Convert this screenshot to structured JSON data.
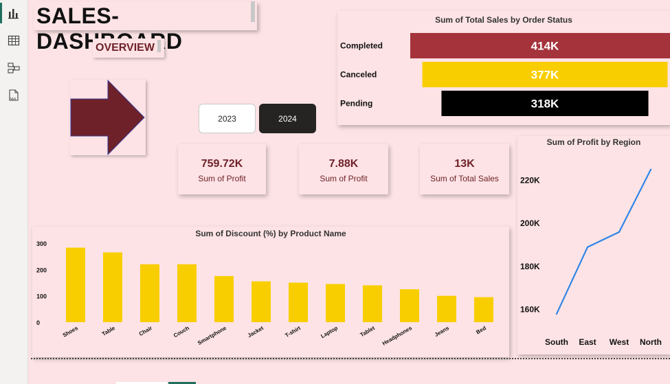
{
  "app": {
    "rail_icons": [
      "report-view-icon",
      "table-view-icon",
      "model-view-icon",
      "dax-query-icon"
    ]
  },
  "dashboard": {
    "title": "SALES-DASHBOARD",
    "subtitle": "OVERVIEW",
    "years": [
      "2023",
      "2024"
    ],
    "selected_year": "2024",
    "kpis": [
      {
        "value": "759.72K",
        "label": "Sum of Profit"
      },
      {
        "value": "7.88K",
        "label": "Sum of Profit"
      },
      {
        "value": "13K",
        "label": "Sum of Total Sales"
      }
    ]
  },
  "colors": {
    "background": "#fde3e5",
    "maroon": "#6e2128",
    "completed": "#a4333c",
    "canceled": "#f9ce00",
    "pending": "#000000",
    "discount_bar": "#f9ce00",
    "profit_line": "#2f86e8"
  },
  "chart_data": [
    {
      "type": "bar",
      "orientation": "horizontal",
      "title": "Sum of Total Sales by Order Status",
      "categories": [
        "Completed",
        "Canceled",
        "Pending"
      ],
      "values": [
        414000,
        377000,
        318000
      ],
      "data_labels": [
        "414K",
        "377K",
        "318K"
      ],
      "xlabel": "",
      "ylabel": ""
    },
    {
      "type": "line",
      "title": "Sum of Profit by Region",
      "x": [
        "South",
        "East",
        "West",
        "North"
      ],
      "values": [
        158000,
        189000,
        196000,
        225000
      ],
      "yticks": [
        "160K",
        "180K",
        "200K",
        "220K"
      ],
      "ylim": [
        150000,
        231000
      ],
      "xlabel": "",
      "ylabel": ""
    },
    {
      "type": "bar",
      "title": "Sum of Discount (%) by Product Name",
      "categories": [
        "Shoes",
        "Table",
        "Chair",
        "Couch",
        "Smartphone",
        "Jacket",
        "T-shirt",
        "Laptop",
        "Tablet",
        "Headphones",
        "Jeans",
        "Bed"
      ],
      "values": [
        283,
        265,
        220,
        220,
        175,
        155,
        150,
        145,
        140,
        125,
        100,
        95
      ],
      "yticks": [
        "0",
        "100",
        "200",
        "300"
      ],
      "ylim": [
        0,
        300
      ],
      "xlabel": "",
      "ylabel": ""
    }
  ]
}
